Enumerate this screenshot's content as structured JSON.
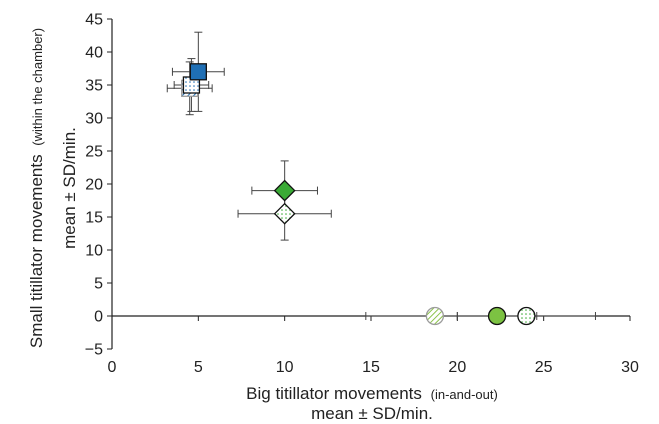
{
  "chart_data": {
    "type": "scatter",
    "xlabel_main": "Big titillator movements",
    "xlabel_sub": "(in-and-out)",
    "xlabel_line2": "mean ± SD/min.",
    "ylabel_main": "Small titillator movements",
    "ylabel_sub": "(within the chamber)",
    "ylabel_tail": "mean ± SD/min.",
    "xlim": [
      0,
      30
    ],
    "ylim": [
      -5,
      45
    ],
    "x_ticks": [
      "0",
      "5",
      "10",
      "15",
      "20",
      "25",
      "30"
    ],
    "y_ticks": [
      "−5",
      "0",
      "5",
      "10",
      "15",
      "20",
      "25",
      "30",
      "35",
      "40",
      "45"
    ],
    "grid": false,
    "points": [
      {
        "x": 5.0,
        "y": 37.0,
        "x_sd": 1.5,
        "y_sd": 6.0,
        "marker": "square",
        "fill": "solid",
        "color": "#1f6fb5"
      },
      {
        "x": 4.6,
        "y": 35.0,
        "x_sd": 1.0,
        "y_sd": 4.0,
        "marker": "square",
        "fill": "dotted",
        "color": "#1f6fb5"
      },
      {
        "x": 4.5,
        "y": 34.5,
        "x_sd": 1.3,
        "y_sd": 4.0,
        "marker": "square",
        "fill": "hatched",
        "color": "#1f6fb5"
      },
      {
        "x": 10.0,
        "y": 19.0,
        "x_sd": 1.9,
        "y_sd": 4.5,
        "marker": "diamond",
        "fill": "solid",
        "color": "#3aaa35"
      },
      {
        "x": 10.0,
        "y": 15.5,
        "x_sd": 2.7,
        "y_sd": 4.0,
        "marker": "diamond",
        "fill": "dotted",
        "color": "#3aaa35"
      },
      {
        "x": 18.7,
        "y": 0.0,
        "x_sd": 4.0,
        "y_sd": 0,
        "marker": "circle",
        "fill": "hatched",
        "color": "#8bc34a"
      },
      {
        "x": 22.3,
        "y": 0.0,
        "x_sd": 2.3,
        "y_sd": 0,
        "marker": "circle",
        "fill": "solid",
        "color": "#7cc242"
      },
      {
        "x": 24.0,
        "y": 0.0,
        "x_sd": 4.0,
        "y_sd": 0,
        "marker": "circle",
        "fill": "dotted",
        "color": "#7cc242"
      }
    ]
  }
}
